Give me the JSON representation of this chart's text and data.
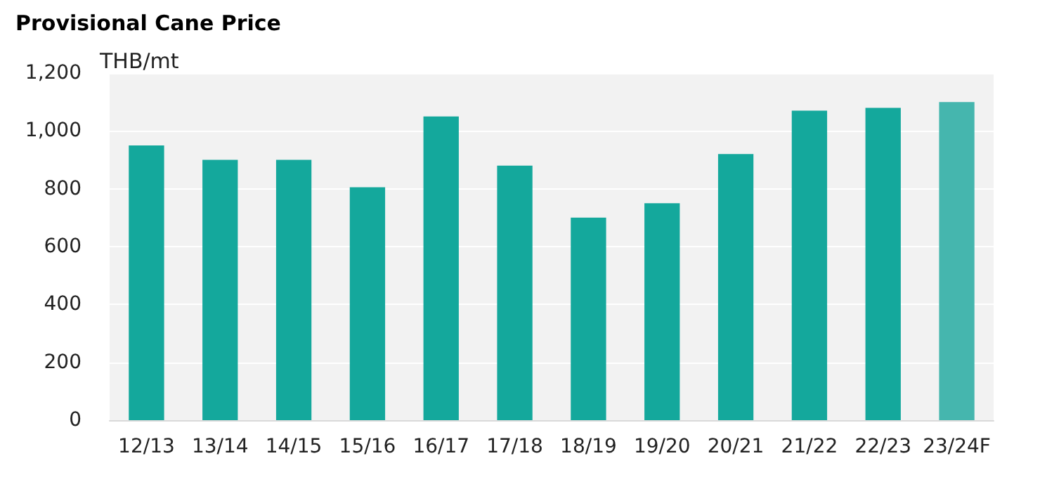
{
  "chart_data": {
    "type": "bar",
    "title": "Provisional Cane Price",
    "ylabel": "THB/mt",
    "categories": [
      "12/13",
      "13/14",
      "14/15",
      "15/16",
      "16/17",
      "17/18",
      "18/19",
      "19/20",
      "20/21",
      "21/22",
      "22/23",
      "23/24F"
    ],
    "values": [
      950,
      900,
      900,
      805,
      1050,
      880,
      700,
      750,
      920,
      1070,
      1080,
      1100
    ],
    "colors": [
      "#14a89c",
      "#14a89c",
      "#14a89c",
      "#14a89c",
      "#14a89c",
      "#14a89c",
      "#14a89c",
      "#14a89c",
      "#14a89c",
      "#14a89c",
      "#14a89c",
      "#45b6ae"
    ],
    "ylim": [
      0,
      1200
    ],
    "yticks": [
      0,
      200,
      400,
      600,
      800,
      {
        "value": 1000,
        "label": "1,000"
      },
      {
        "value": 1200,
        "label": "1,200"
      }
    ],
    "grid": "y"
  }
}
